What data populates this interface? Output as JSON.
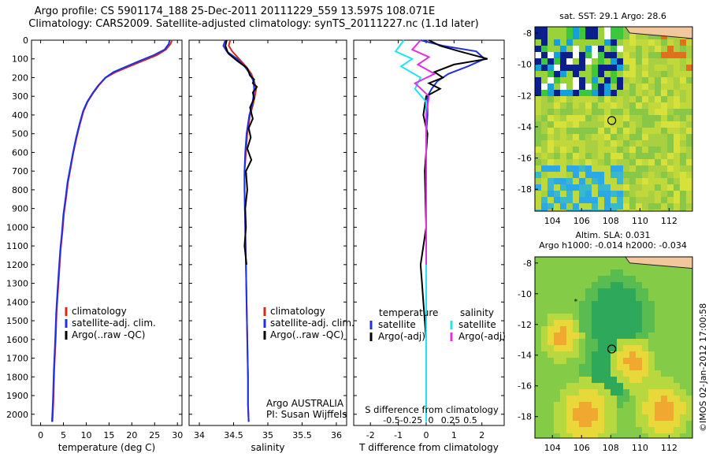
{
  "title_line1": "Argo profile: CS 5901174_188 25-Dec-2011 20111229_559 13.597S 108.071E",
  "title_line2": "Climatology: CARS2009. Satellite-adjusted climatology: synTS_20111227.nc (1.1d later)",
  "side_stamp": "©IMOS 02-Jan-2012 17:00:58",
  "colors": {
    "climatology": "#d42a1e",
    "satellite": "#2030e0",
    "argo": "#000000",
    "cyan": "#22e4ee",
    "magenta": "#e030e0"
  },
  "chart_data": [
    {
      "type": "line",
      "xlabel": "temperature (deg C)",
      "ylabel": "",
      "xlim": [
        -2,
        31
      ],
      "ylim": [
        2060,
        0
      ],
      "xticks": [
        "0",
        "5",
        "10",
        "15",
        "20",
        "25",
        "30"
      ],
      "yticks": [
        "0",
        "100",
        "200",
        "300",
        "400",
        "500",
        "600",
        "700",
        "800",
        "900",
        "1000",
        "1100",
        "1200",
        "1300",
        "1400",
        "1500",
        "1600",
        "1700",
        "1800",
        "1900",
        "2000"
      ],
      "legend": [
        "climatology",
        "satellite-adj. clim.",
        "Argo(..raw -QC)"
      ],
      "series": [
        {
          "name": "climatology",
          "color": "#d42a1e",
          "x": [
            28.8,
            28.5,
            27.5,
            25.5,
            22.5,
            19.5,
            16.5,
            14.3,
            12.8,
            11.6,
            10.3,
            9.4,
            8.6,
            7.9,
            7.2,
            6.6,
            6.0,
            5.6,
            5.1,
            4.8,
            4.4,
            4.1,
            3.8,
            3.5,
            3.3,
            3.0,
            2.8,
            2.6
          ],
          "y": [
            0,
            20,
            50,
            80,
            110,
            140,
            170,
            200,
            240,
            280,
            330,
            380,
            450,
            520,
            600,
            680,
            760,
            840,
            930,
            1020,
            1120,
            1230,
            1340,
            1460,
            1600,
            1760,
            1930,
            2040
          ]
        },
        {
          "name": "satellite-adj. clim.",
          "color": "#2030e0",
          "x": [
            28.3,
            28.1,
            27.2,
            24.8,
            21.8,
            18.9,
            16.0,
            14.2,
            12.7,
            11.5,
            10.2,
            9.3,
            8.5,
            7.8,
            7.1,
            6.5,
            5.9,
            5.5,
            5.0,
            4.7,
            4.3,
            4.0,
            3.7,
            3.4,
            3.2,
            2.9,
            2.7,
            2.5
          ],
          "y": [
            0,
            20,
            50,
            80,
            110,
            140,
            170,
            200,
            240,
            280,
            330,
            380,
            450,
            520,
            600,
            680,
            760,
            840,
            930,
            1020,
            1120,
            1230,
            1340,
            1460,
            1600,
            1760,
            1930,
            2040
          ]
        }
      ]
    },
    {
      "type": "line",
      "xlabel": "salinity",
      "xlim": [
        33.85,
        36.15
      ],
      "ylim": [
        2060,
        0
      ],
      "xticks": [
        "34",
        "34.5",
        "35",
        "35.5",
        "36"
      ],
      "legend": [
        "climatology",
        "satellite-adj. clim.",
        "Argo(..raw -QC)"
      ],
      "annotation": [
        "Argo AUSTRALIA",
        "PI: Susan Wijffels"
      ],
      "series": [
        {
          "name": "climatology",
          "color": "#d42a1e",
          "x": [
            34.45,
            34.43,
            34.48,
            34.58,
            34.68,
            34.76,
            34.8,
            34.83,
            34.81,
            34.78,
            34.74,
            34.7,
            34.68,
            34.66,
            34.66,
            34.67,
            34.68,
            34.69,
            34.7,
            34.71,
            34.71,
            34.72
          ],
          "y": [
            0,
            30,
            60,
            100,
            140,
            180,
            220,
            260,
            300,
            350,
            400,
            500,
            600,
            700,
            800,
            1000,
            1200,
            1400,
            1600,
            1800,
            1950,
            2040
          ]
        },
        {
          "name": "satellite-adj. clim.",
          "color": "#2030e0",
          "x": [
            34.38,
            34.35,
            34.4,
            34.55,
            34.66,
            34.74,
            34.79,
            34.8,
            34.79,
            34.77,
            34.73,
            34.69,
            34.67,
            34.66,
            34.66,
            34.67,
            34.68,
            34.69,
            34.7,
            34.71,
            34.71,
            34.72
          ],
          "y": [
            0,
            30,
            60,
            100,
            140,
            180,
            220,
            260,
            300,
            350,
            400,
            500,
            600,
            700,
            800,
            1000,
            1200,
            1400,
            1600,
            1800,
            1950,
            2040
          ]
        },
        {
          "name": "Argo(..raw -QC)",
          "color": "#000000",
          "x": [
            34.4,
            34.38,
            34.42,
            34.55,
            34.7,
            34.74,
            34.8,
            34.78,
            34.84,
            34.78,
            34.8,
            34.74,
            34.78,
            34.72,
            34.75,
            34.7,
            34.76,
            34.68,
            34.7,
            34.67,
            34.68,
            34.66,
            34.69
          ],
          "y": [
            0,
            30,
            70,
            110,
            150,
            190,
            210,
            230,
            250,
            280,
            310,
            360,
            420,
            470,
            520,
            580,
            640,
            700,
            800,
            900,
            1000,
            1100,
            1200
          ]
        }
      ]
    },
    {
      "type": "line",
      "xlabel": "T difference from climatology",
      "xlabel_top": "S difference from climatology",
      "xlim": [
        -2.6,
        2.8
      ],
      "ylim": [
        2060,
        0
      ],
      "xticks": [
        "-2",
        "-1",
        "0",
        "1",
        "2"
      ],
      "xticks_top": [
        "-0.5",
        "-0.25",
        "0",
        "0.25",
        "0.5"
      ],
      "legend_temperature": [
        "temperature",
        "satellite",
        "Argo(-adj)"
      ],
      "legend_salinity": [
        "salinity",
        "satellite",
        "Argo(-adj)"
      ],
      "series": [
        {
          "name": "T satellite",
          "color": "#2030e0",
          "x": [
            -0.2,
            0.6,
            1.8,
            2.1,
            1.5,
            0.8,
            0.4,
            0.2,
            0.05,
            0.05,
            0,
            0,
            0,
            0,
            0,
            0,
            0,
            0
          ],
          "y": [
            0,
            30,
            60,
            100,
            140,
            180,
            220,
            260,
            300,
            400,
            500,
            700,
            900,
            1100,
            1300,
            1500,
            1700,
            2040
          ]
        },
        {
          "name": "T Argo(-adj)",
          "color": "#000000",
          "x": [
            0.1,
            0.5,
            1.2,
            2.2,
            1.0,
            0.3,
            0.6,
            0.1,
            0.5,
            0.0,
            -0.1,
            0.05,
            -0.05,
            0.0,
            -0.2,
            -0.15,
            -0.1,
            -0.05,
            0.0
          ],
          "y": [
            0,
            30,
            60,
            100,
            130,
            170,
            200,
            230,
            260,
            300,
            400,
            500,
            700,
            1000,
            1200,
            1300,
            1400,
            1500,
            1600
          ]
        },
        {
          "name": "S satellite",
          "color": "#22e4ee",
          "x": [
            -0.8,
            -1.1,
            -0.5,
            -0.9,
            -0.2,
            -0.4,
            0,
            0,
            0,
            0,
            0
          ],
          "y": [
            0,
            60,
            100,
            140,
            200,
            260,
            330,
            500,
            1000,
            1500,
            2040
          ]
        },
        {
          "name": "S Argo(-adj)",
          "color": "#e030e0",
          "x": [
            -0.2,
            -0.5,
            0.1,
            -0.3,
            0.3,
            -0.4,
            0.1,
            0,
            0,
            0,
            0
          ],
          "y": [
            0,
            50,
            90,
            130,
            180,
            230,
            300,
            400,
            700,
            1000,
            1200
          ]
        }
      ]
    },
    {
      "type": "heatmap",
      "title": "sat. SST: 29.1  Argo: 28.6",
      "xlim": [
        102.8,
        113.6
      ],
      "ylim": [
        -19.4,
        -7.6
      ],
      "xticks": [
        "104",
        "106",
        "108",
        "110",
        "112"
      ],
      "yticks": [
        "-8",
        "-10",
        "-12",
        "-14",
        "-16",
        "-18"
      ],
      "marker": {
        "lon": 108.07,
        "lat": -13.6
      }
    },
    {
      "type": "heatmap",
      "title_line1": "Altim. SLA: 0.031",
      "title_line2": "Argo h1000: -0.014 h2000: -0.034",
      "xlim": [
        102.8,
        113.6
      ],
      "ylim": [
        -19.4,
        -7.6
      ],
      "xticks": [
        "104",
        "106",
        "108",
        "110",
        "112"
      ],
      "yticks": [
        "-8",
        "-10",
        "-12",
        "-14",
        "-16",
        "-18"
      ],
      "marker": {
        "lon": 108.07,
        "lat": -13.6
      },
      "marker2": {
        "lon": 105.6,
        "lat": -10.5
      }
    }
  ]
}
